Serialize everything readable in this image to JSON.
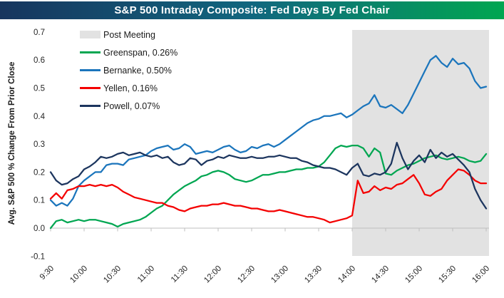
{
  "chart_data": {
    "type": "line",
    "title": "S&P 500 Intraday Composite: Fed Days By Fed Chair",
    "xlabel": "",
    "ylabel": "Avg. S&P 500 % Change From Prior Close",
    "ylim": [
      -0.1,
      0.7
    ],
    "grid": false,
    "legend_position": "top-left-inside-plot",
    "y_ticks": [
      0.7,
      0.6,
      0.5,
      0.4,
      0.3,
      0.2,
      0.1,
      0.0,
      -0.1
    ],
    "y_tick_labels": [
      "0.7",
      "0.6",
      "0.5",
      "0.4",
      "0.3",
      "0.2",
      "0.1",
      "0.0",
      "-0.1"
    ],
    "x_tick_minutes": [
      570,
      600,
      630,
      660,
      690,
      720,
      750,
      780,
      810,
      840,
      870,
      900,
      930,
      960
    ],
    "x_tick_labels": [
      "9:30",
      "10:00",
      "10:30",
      "11:00",
      "11:30",
      "12:00",
      "12:30",
      "13:00",
      "13:30",
      "14:00",
      "14:30",
      "15:00",
      "15:30",
      "16:00"
    ],
    "x_unit": "time of day (minutes since midnight)",
    "x_minutes_start": 570,
    "x_minutes_step": 5,
    "shaded_region": {
      "label": "Post Meeting",
      "start_label": "14:00",
      "end_label": "16:00",
      "start_min": 840,
      "end_min": 960,
      "color": "#E2E2E2"
    },
    "series": [
      {
        "name": "Greenspan",
        "legend_label": "Greenspan, 0.26%",
        "close_pct": "0.26%",
        "color": "#00A651",
        "values": [
          0.0,
          0.025,
          0.03,
          0.02,
          0.025,
          0.03,
          0.025,
          0.03,
          0.03,
          0.025,
          0.02,
          0.015,
          0.005,
          0.015,
          0.02,
          0.025,
          0.03,
          0.04,
          0.055,
          0.07,
          0.08,
          0.1,
          0.12,
          0.135,
          0.15,
          0.16,
          0.17,
          0.185,
          0.19,
          0.2,
          0.205,
          0.2,
          0.19,
          0.175,
          0.17,
          0.165,
          0.17,
          0.18,
          0.19,
          0.19,
          0.195,
          0.2,
          0.2,
          0.205,
          0.21,
          0.21,
          0.215,
          0.215,
          0.22,
          0.235,
          0.26,
          0.285,
          0.295,
          0.29,
          0.295,
          0.295,
          0.285,
          0.255,
          0.285,
          0.27,
          0.195,
          0.19,
          0.205,
          0.215,
          0.225,
          0.23,
          0.24,
          0.25,
          0.255,
          0.26,
          0.25,
          0.245,
          0.25,
          0.255,
          0.25,
          0.24,
          0.235,
          0.24,
          0.265
        ]
      },
      {
        "name": "Bernanke",
        "legend_label": "Bernanke, 0.50%",
        "close_pct": "0.50%",
        "color": "#1B75BC",
        "values": [
          0.1,
          0.08,
          0.09,
          0.08,
          0.105,
          0.15,
          0.17,
          0.185,
          0.2,
          0.2,
          0.225,
          0.23,
          0.23,
          0.225,
          0.245,
          0.25,
          0.255,
          0.26,
          0.275,
          0.285,
          0.29,
          0.295,
          0.28,
          0.285,
          0.3,
          0.29,
          0.265,
          0.27,
          0.275,
          0.27,
          0.28,
          0.29,
          0.295,
          0.28,
          0.27,
          0.275,
          0.29,
          0.285,
          0.295,
          0.3,
          0.29,
          0.3,
          0.315,
          0.33,
          0.345,
          0.36,
          0.375,
          0.385,
          0.39,
          0.4,
          0.4,
          0.405,
          0.41,
          0.395,
          0.405,
          0.42,
          0.435,
          0.445,
          0.475,
          0.435,
          0.43,
          0.44,
          0.425,
          0.41,
          0.44,
          0.48,
          0.52,
          0.56,
          0.6,
          0.615,
          0.59,
          0.575,
          0.605,
          0.585,
          0.59,
          0.57,
          0.525,
          0.5,
          0.505
        ]
      },
      {
        "name": "Yellen",
        "legend_label": "Yellen, 0.16%",
        "close_pct": "0.16%",
        "color": "#F40000",
        "values": [
          0.105,
          0.125,
          0.105,
          0.135,
          0.14,
          0.15,
          0.15,
          0.155,
          0.15,
          0.155,
          0.15,
          0.155,
          0.145,
          0.13,
          0.12,
          0.11,
          0.105,
          0.1,
          0.095,
          0.09,
          0.09,
          0.08,
          0.075,
          0.065,
          0.06,
          0.07,
          0.075,
          0.08,
          0.08,
          0.085,
          0.085,
          0.09,
          0.085,
          0.08,
          0.08,
          0.075,
          0.07,
          0.07,
          0.065,
          0.06,
          0.06,
          0.065,
          0.06,
          0.055,
          0.05,
          0.045,
          0.04,
          0.04,
          0.035,
          0.03,
          0.02,
          0.025,
          0.03,
          0.035,
          0.045,
          0.17,
          0.125,
          0.13,
          0.15,
          0.135,
          0.145,
          0.14,
          0.155,
          0.16,
          0.175,
          0.19,
          0.16,
          0.12,
          0.115,
          0.13,
          0.14,
          0.17,
          0.19,
          0.21,
          0.205,
          0.19,
          0.17,
          0.16,
          0.16
        ]
      },
      {
        "name": "Powell",
        "legend_label": "Powell, 0.07%",
        "close_pct": "0.07%",
        "color": "#1C355E",
        "values": [
          0.2,
          0.17,
          0.155,
          0.16,
          0.175,
          0.185,
          0.21,
          0.22,
          0.235,
          0.255,
          0.25,
          0.255,
          0.265,
          0.27,
          0.26,
          0.265,
          0.27,
          0.26,
          0.255,
          0.26,
          0.25,
          0.255,
          0.235,
          0.225,
          0.23,
          0.25,
          0.245,
          0.225,
          0.24,
          0.245,
          0.255,
          0.25,
          0.26,
          0.255,
          0.25,
          0.25,
          0.255,
          0.25,
          0.25,
          0.255,
          0.255,
          0.26,
          0.255,
          0.25,
          0.25,
          0.24,
          0.235,
          0.225,
          0.22,
          0.215,
          0.215,
          0.21,
          0.2,
          0.19,
          0.215,
          0.23,
          0.19,
          0.185,
          0.195,
          0.19,
          0.2,
          0.23,
          0.305,
          0.25,
          0.21,
          0.24,
          0.26,
          0.235,
          0.28,
          0.25,
          0.27,
          0.255,
          0.265,
          0.245,
          0.225,
          0.2,
          0.14,
          0.1,
          0.07
        ]
      }
    ]
  },
  "title_bar": {
    "gradient": [
      "#17355E",
      "#11677F",
      "#00A651"
    ],
    "text_color": "#FFFFFF"
  },
  "axis_style": {
    "line_color": "#BFBFBF",
    "tick_text_color": "#262626",
    "axis_title_color": "#1A1A1A"
  }
}
